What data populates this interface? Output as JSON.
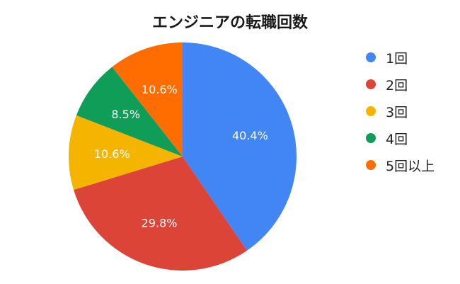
{
  "chart_data": {
    "type": "pie",
    "title": "エンジニアの転職回数",
    "categories": [
      "1回",
      "2回",
      "3回",
      "4回",
      "5回以上"
    ],
    "values": [
      40.4,
      29.8,
      10.6,
      8.5,
      10.6
    ],
    "data_labels": [
      "40.4%",
      "29.8%",
      "10.6%",
      "8.5%",
      "10.6%"
    ],
    "colors": [
      "#4285f4",
      "#db4437",
      "#f4b400",
      "#0f9d58",
      "#ff6d01"
    ],
    "start": "12 o'clock",
    "direction": "clockwise",
    "legend_position": "right"
  }
}
